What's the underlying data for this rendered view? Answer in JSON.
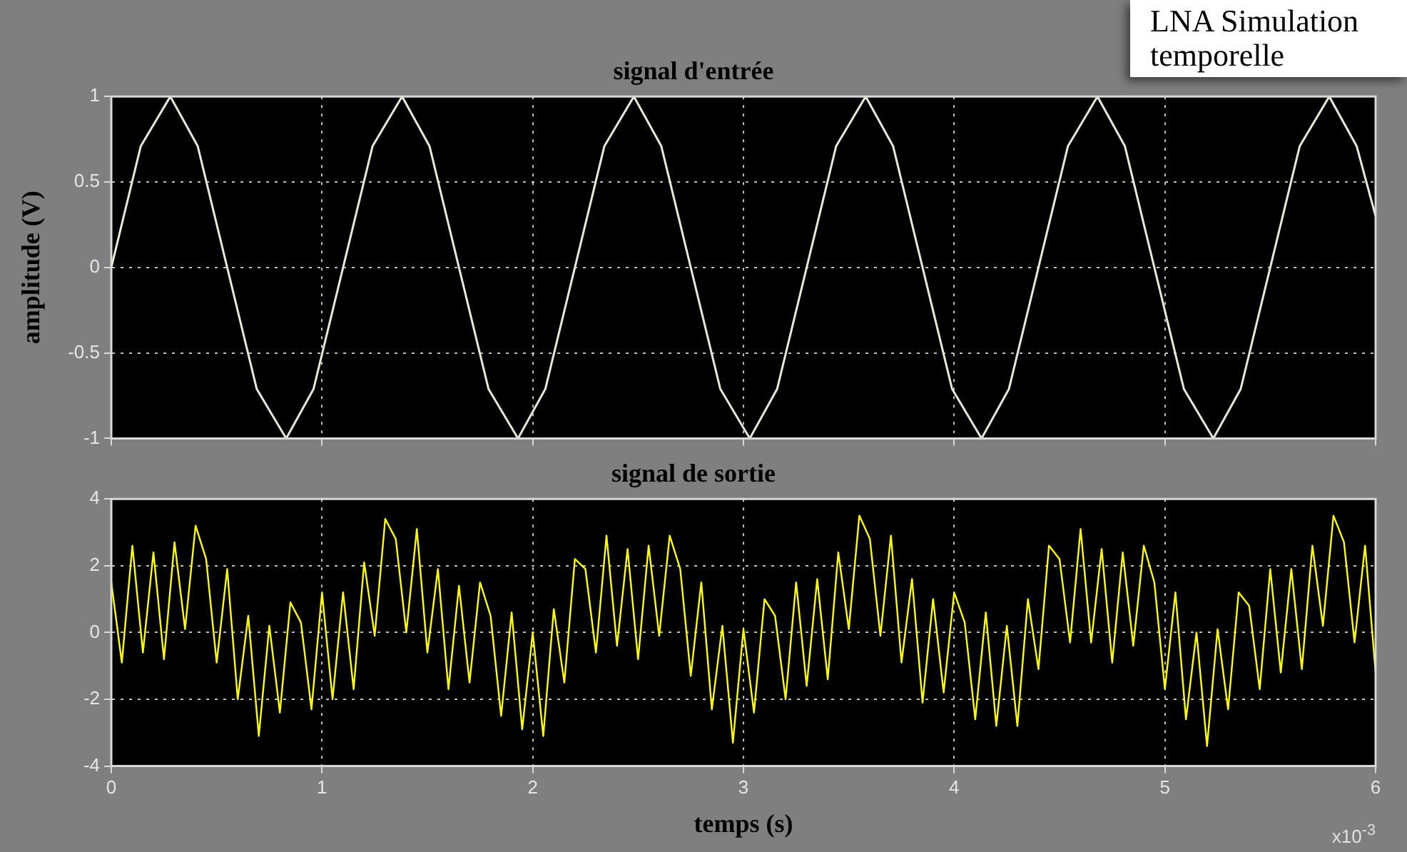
{
  "chart_data": [
    {
      "type": "line",
      "title": "signal d'entrée",
      "ylabel": "amplitude (V)",
      "annotations": [
        "LNA Simulation temporelle"
      ],
      "x": [
        0,
        0.14,
        0.28,
        0.41,
        0.55,
        0.69,
        0.83,
        0.96,
        1.1,
        1.24,
        1.38,
        1.51,
        1.65,
        1.79,
        1.93,
        2.06,
        2.2,
        2.34,
        2.48,
        2.61,
        2.75,
        2.89,
        3.03,
        3.16,
        3.3,
        3.44,
        3.58,
        3.71,
        3.85,
        3.99,
        4.13,
        4.26,
        4.4,
        4.54,
        4.68,
        4.81,
        4.95,
        5.09,
        5.23,
        5.36,
        5.5,
        5.64,
        5.78,
        5.91,
        6
      ],
      "series": [
        {
          "color": "#e8e8d8",
          "values": [
            0,
            0.71,
            1,
            0.71,
            0,
            -0.71,
            -1,
            -0.71,
            0,
            0.71,
            1,
            0.71,
            0,
            -0.71,
            -1,
            -0.71,
            0,
            0.71,
            1,
            0.71,
            0,
            -0.71,
            -1,
            -0.71,
            0,
            0.71,
            1,
            0.71,
            0,
            -0.71,
            -1,
            -0.71,
            0,
            0.71,
            1,
            0.71,
            0,
            -0.71,
            -1,
            -0.71,
            0,
            0.71,
            1,
            0.71,
            0.3
          ]
        }
      ],
      "xlim": [
        0,
        6
      ],
      "xticks": [
        0,
        1,
        2,
        3,
        4,
        5,
        6
      ],
      "ylim": [
        -1,
        1
      ],
      "yticks": [
        -1,
        -0.5,
        0,
        0.5,
        1
      ],
      "grid": true,
      "tick_labels": "y",
      "marker": "none"
    },
    {
      "type": "line",
      "title": "signal de sortie",
      "xlabel": "temps (s)",
      "annotations": [
        "x10$^{-3}$"
      ],
      "x": [
        0,
        0.05,
        0.1,
        0.15,
        0.2,
        0.25,
        0.3,
        0.35,
        0.4,
        0.45,
        0.5,
        0.55,
        0.6,
        0.65,
        0.7,
        0.75,
        0.8,
        0.85,
        0.9,
        0.95,
        1,
        1.05,
        1.1,
        1.15,
        1.2,
        1.25,
        1.3,
        1.35,
        1.4,
        1.45,
        1.5,
        1.55,
        1.6,
        1.65,
        1.7,
        1.75,
        1.8,
        1.85,
        1.9,
        1.95,
        2,
        2.05,
        2.1,
        2.15,
        2.2,
        2.25,
        2.3,
        2.35,
        2.4,
        2.45,
        2.5,
        2.55,
        2.6,
        2.65,
        2.7,
        2.75,
        2.8,
        2.85,
        2.9,
        2.95,
        3,
        3.05,
        3.1,
        3.15,
        3.2,
        3.25,
        3.3,
        3.35,
        3.4,
        3.45,
        3.5,
        3.55,
        3.6,
        3.65,
        3.7,
        3.75,
        3.8,
        3.85,
        3.9,
        3.95,
        4,
        4.05,
        4.1,
        4.15,
        4.2,
        4.25,
        4.3,
        4.35,
        4.4,
        4.45,
        4.5,
        4.55,
        4.6,
        4.65,
        4.7,
        4.75,
        4.8,
        4.85,
        4.9,
        4.95,
        5,
        5.05,
        5.1,
        5.15,
        5.2,
        5.25,
        5.3,
        5.35,
        5.4,
        5.45,
        5.5,
        5.55,
        5.6,
        5.65,
        5.7,
        5.75,
        5.8,
        5.85,
        5.9,
        5.95,
        6
      ],
      "series": [
        {
          "color": "#ffff00",
          "values": [
            1.5,
            -0.9,
            2.6,
            -0.6,
            2.4,
            -0.8,
            2.7,
            0.1,
            3.2,
            2.2,
            -0.9,
            1.9,
            -2.0,
            0.5,
            -3.1,
            0.2,
            -2.4,
            0.9,
            0.3,
            -2.3,
            1.2,
            -2.0,
            1.2,
            -1.7,
            2.1,
            -0.1,
            3.4,
            2.8,
            0.0,
            3.1,
            -0.6,
            1.9,
            -1.7,
            1.4,
            -1.5,
            1.5,
            0.5,
            -2.5,
            0.6,
            -2.9,
            0.0,
            -3.1,
            0.7,
            -1.5,
            2.2,
            1.9,
            -0.6,
            2.9,
            -0.4,
            2.5,
            -0.8,
            2.6,
            -0.1,
            2.9,
            1.9,
            -1.3,
            1.5,
            -2.3,
            0.2,
            -3.3,
            0.1,
            -2.4,
            1.0,
            0.5,
            -2.0,
            1.5,
            -1.6,
            1.6,
            -1.4,
            2.4,
            0.1,
            3.5,
            2.8,
            -0.1,
            2.9,
            -0.9,
            1.6,
            -2.1,
            1.0,
            -1.8,
            1.2,
            0.3,
            -2.6,
            0.6,
            -2.8,
            0.2,
            -2.8,
            1.0,
            -1.1,
            2.6,
            2.2,
            -0.3,
            3.1,
            -0.3,
            2.5,
            -0.9,
            2.4,
            -0.4,
            2.6,
            1.5,
            -1.7,
            1.2,
            -2.6,
            0.0,
            -3.4,
            0.1,
            -2.3,
            1.2,
            0.8,
            -1.7,
            1.9,
            -1.2,
            1.9,
            -1.1,
            2.6,
            0.2,
            3.5,
            2.7,
            -0.3,
            2.6,
            -1.2
          ]
        }
      ],
      "xlim": [
        0,
        6
      ],
      "xticks": [
        0,
        1,
        2,
        3,
        4,
        5,
        6
      ],
      "ylim": [
        -4,
        4
      ],
      "yticks": [
        -4,
        -2,
        0,
        2,
        4
      ],
      "grid": true,
      "marker": "none"
    }
  ]
}
